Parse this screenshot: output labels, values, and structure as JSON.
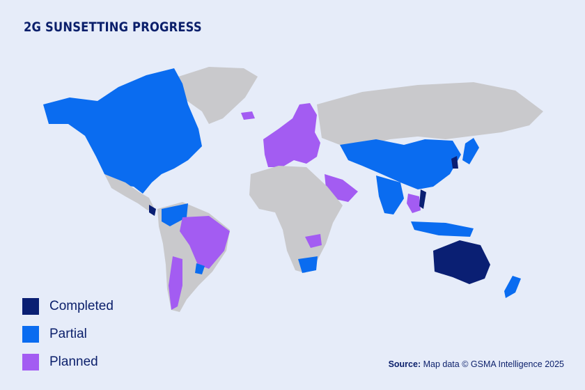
{
  "title": "2G SUNSETTING PROGRESS",
  "legend": [
    {
      "label": "Completed",
      "color": "#0a1f73"
    },
    {
      "label": "Partial",
      "color": "#0a6cf0"
    },
    {
      "label": "Planned",
      "color": "#a35cf2"
    }
  ],
  "colors": {
    "background": "#e6ecf9",
    "land": "#c9c9cc",
    "completed": "#0a1f73",
    "partial": "#0a6cf0",
    "planned": "#a35cf2"
  },
  "source": {
    "prefix": "Source:",
    "text": "Map data © GSMA Intelligence 2025"
  }
}
